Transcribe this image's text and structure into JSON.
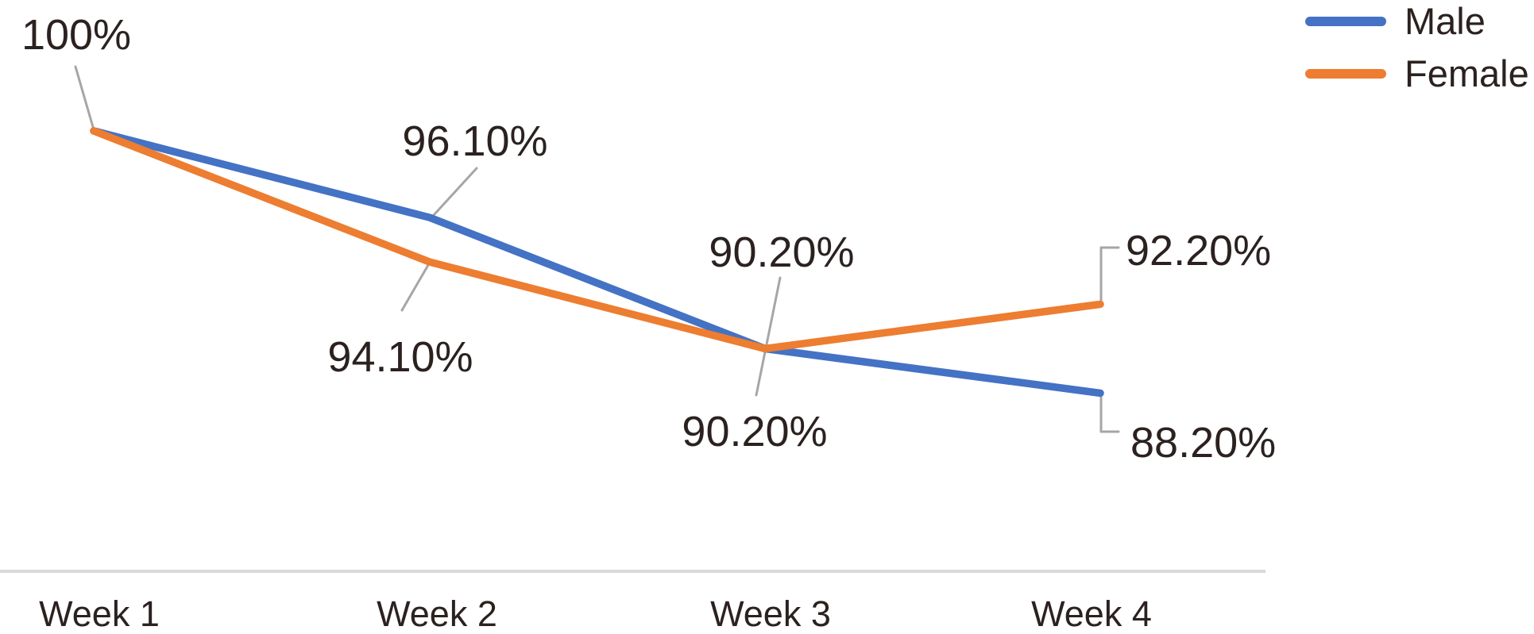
{
  "chart_data": {
    "type": "line",
    "categories": [
      "Week 1",
      "Week 2",
      "Week 3",
      "Week 4"
    ],
    "series": [
      {
        "name": "Male",
        "color": "#4472C4",
        "values": [
          100,
          96.1,
          90.2,
          88.2
        ]
      },
      {
        "name": "Female",
        "color": "#ED7D31",
        "values": [
          100,
          94.1,
          90.2,
          92.2
        ]
      }
    ],
    "point_labels": {
      "week1_start": "100%",
      "week2_male": "96.10%",
      "week2_female": "94.10%",
      "week3_male": "90.20%",
      "week3_female": "90.20%",
      "week4_female": "92.20%",
      "week4_male": "88.20%"
    },
    "title": "",
    "xlabel": "",
    "ylabel": "",
    "ylim_implied": [
      86,
      101
    ],
    "grid": false,
    "legend_position": "top-right",
    "colors": {
      "leader_line": "#A6A6A6",
      "axis_line": "#D9D9D9",
      "text": "#2B2220"
    }
  }
}
